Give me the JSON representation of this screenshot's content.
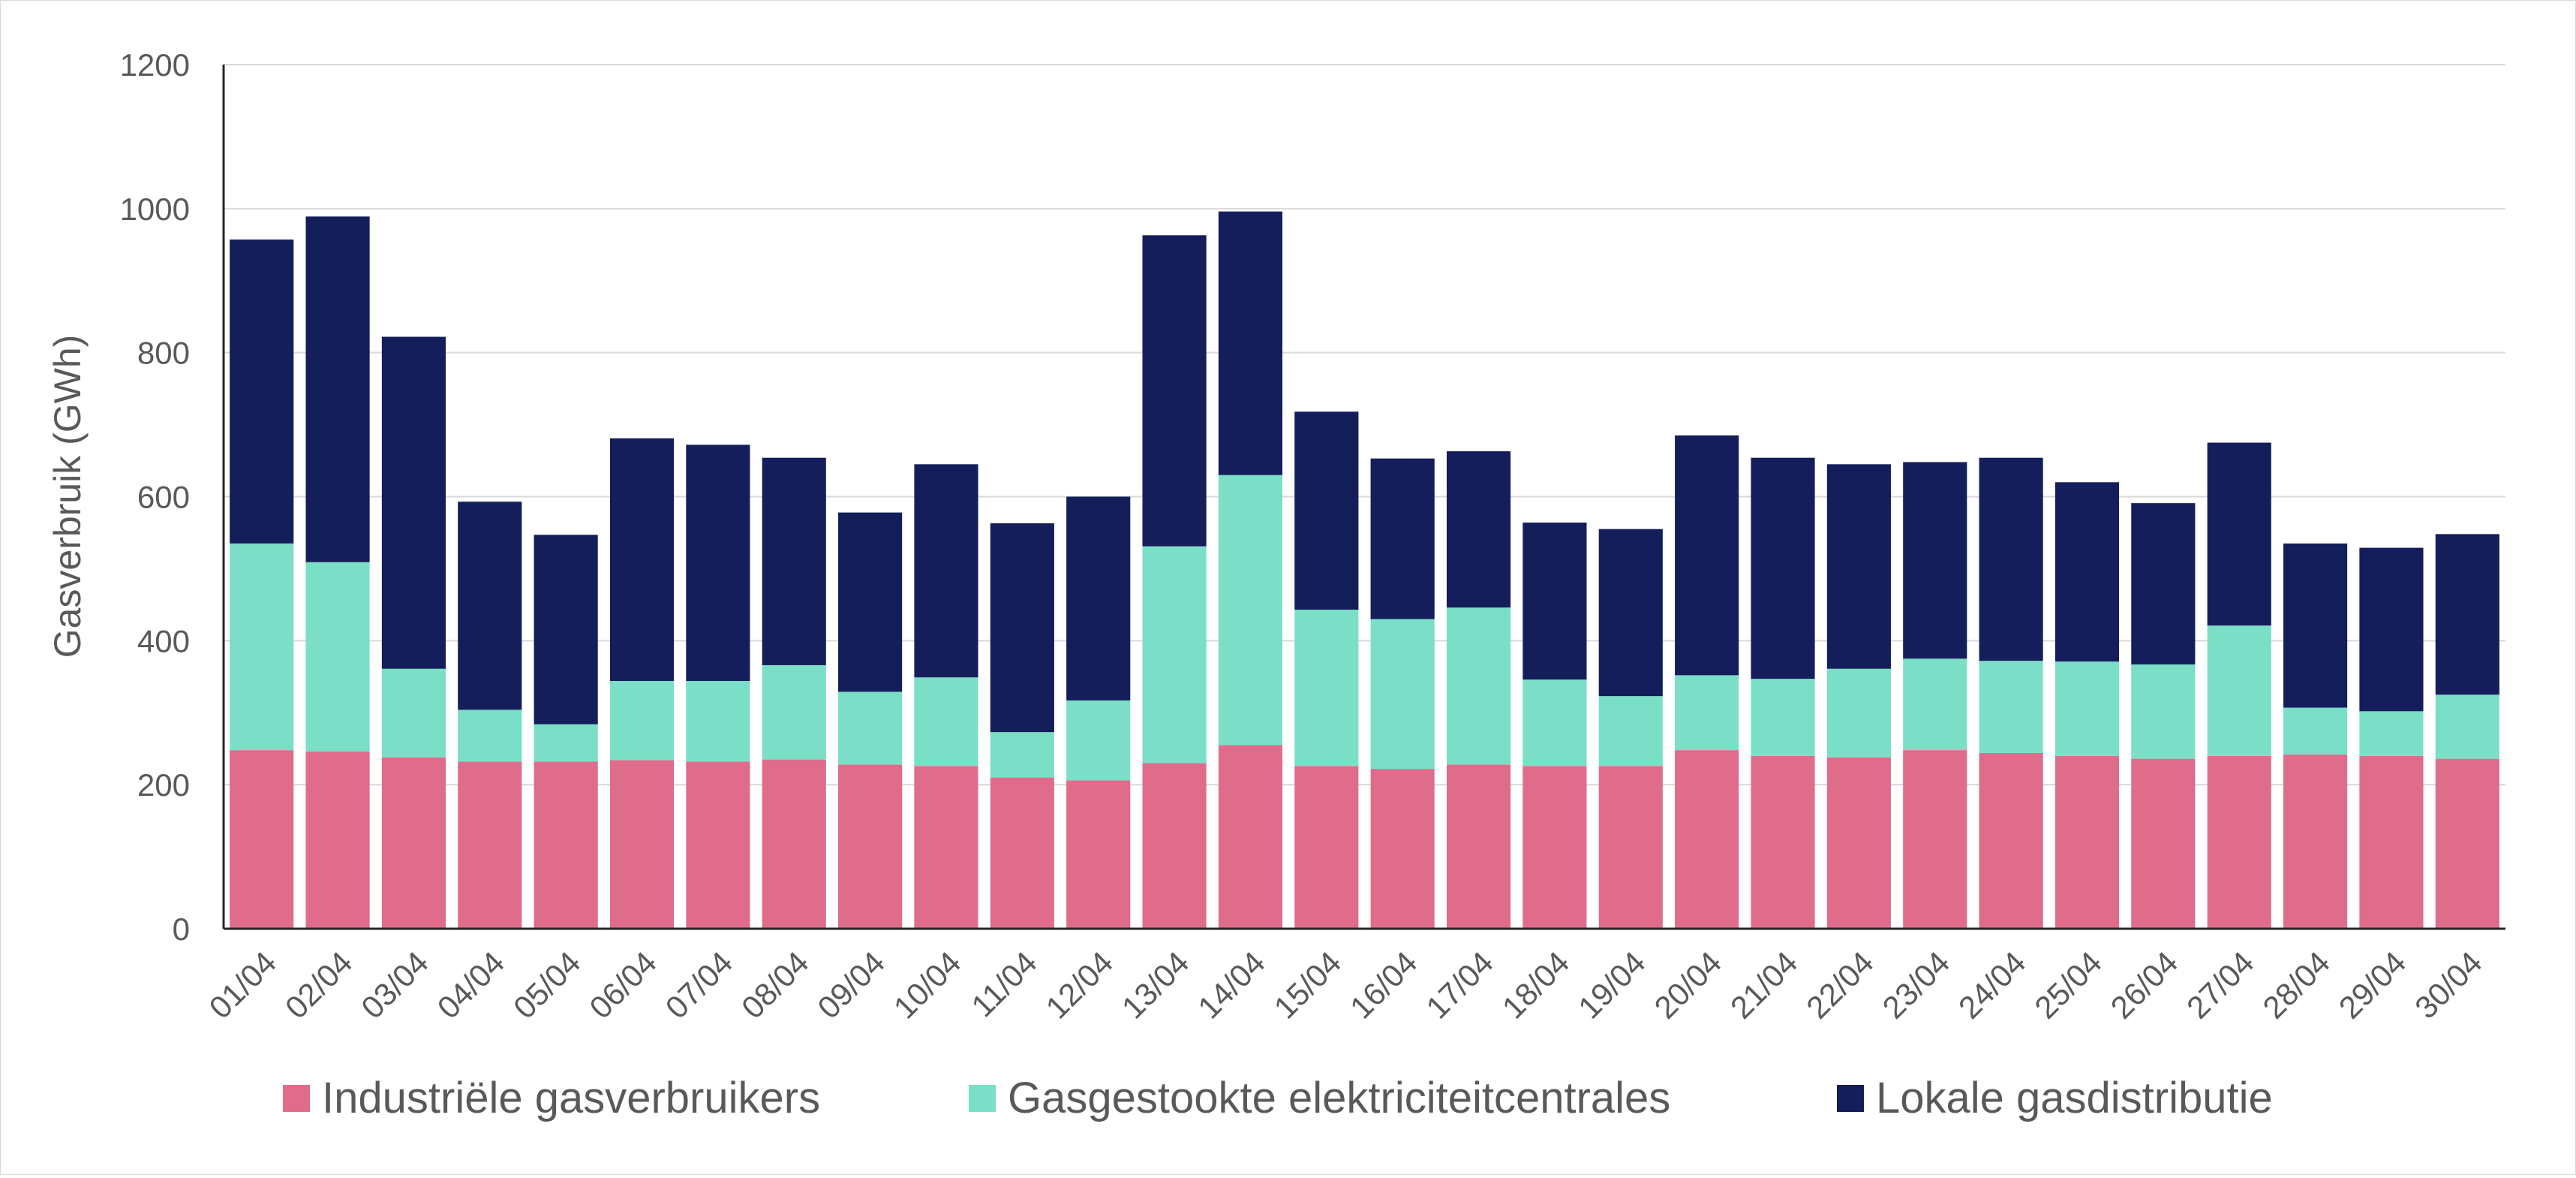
{
  "chart_data": {
    "type": "bar",
    "stacked": true,
    "title": "",
    "xlabel": "",
    "ylabel": "Gasverbruik (GWh)",
    "ylim": [
      0,
      1200
    ],
    "yticks": [
      "0",
      "200",
      "400",
      "600",
      "800",
      "1000",
      "1200"
    ],
    "grid": true,
    "legend_position": "bottom",
    "categories": [
      "01/04",
      "02/04",
      "03/04",
      "04/04",
      "05/04",
      "06/04",
      "07/04",
      "08/04",
      "09/04",
      "10/04",
      "11/04",
      "12/04",
      "13/04",
      "14/04",
      "15/04",
      "16/04",
      "17/04",
      "18/04",
      "19/04",
      "20/04",
      "21/04",
      "22/04",
      "23/04",
      "24/04",
      "25/04",
      "26/04",
      "27/04",
      "28/04",
      "29/04",
      "30/04"
    ],
    "series": [
      {
        "name": "Industriële gasverbruikers",
        "color": "#E06C8C",
        "values": [
          248,
          246,
          238,
          232,
          232,
          234,
          232,
          235,
          228,
          226,
          210,
          206,
          230,
          255,
          226,
          222,
          228,
          226,
          226,
          248,
          240,
          238,
          248,
          244,
          240,
          236,
          240,
          242,
          240,
          236
        ]
      },
      {
        "name": "Gasgestookte elektriciteitcentrales",
        "color": "#7ADFC6",
        "values": [
          287,
          263,
          123,
          72,
          52,
          110,
          112,
          131,
          101,
          123,
          63,
          111,
          301,
          375,
          217,
          208,
          218,
          120,
          97,
          104,
          107,
          123,
          127,
          128,
          131,
          131,
          181,
          65,
          62,
          89
        ]
      },
      {
        "name": "Lokale gasdistributie",
        "color": "#141E5A",
        "values": [
          422,
          480,
          461,
          289,
          263,
          337,
          328,
          288,
          249,
          296,
          290,
          283,
          432,
          366,
          275,
          223,
          217,
          218,
          232,
          333,
          307,
          284,
          273,
          282,
          249,
          224,
          254,
          228,
          227,
          223
        ]
      }
    ]
  }
}
